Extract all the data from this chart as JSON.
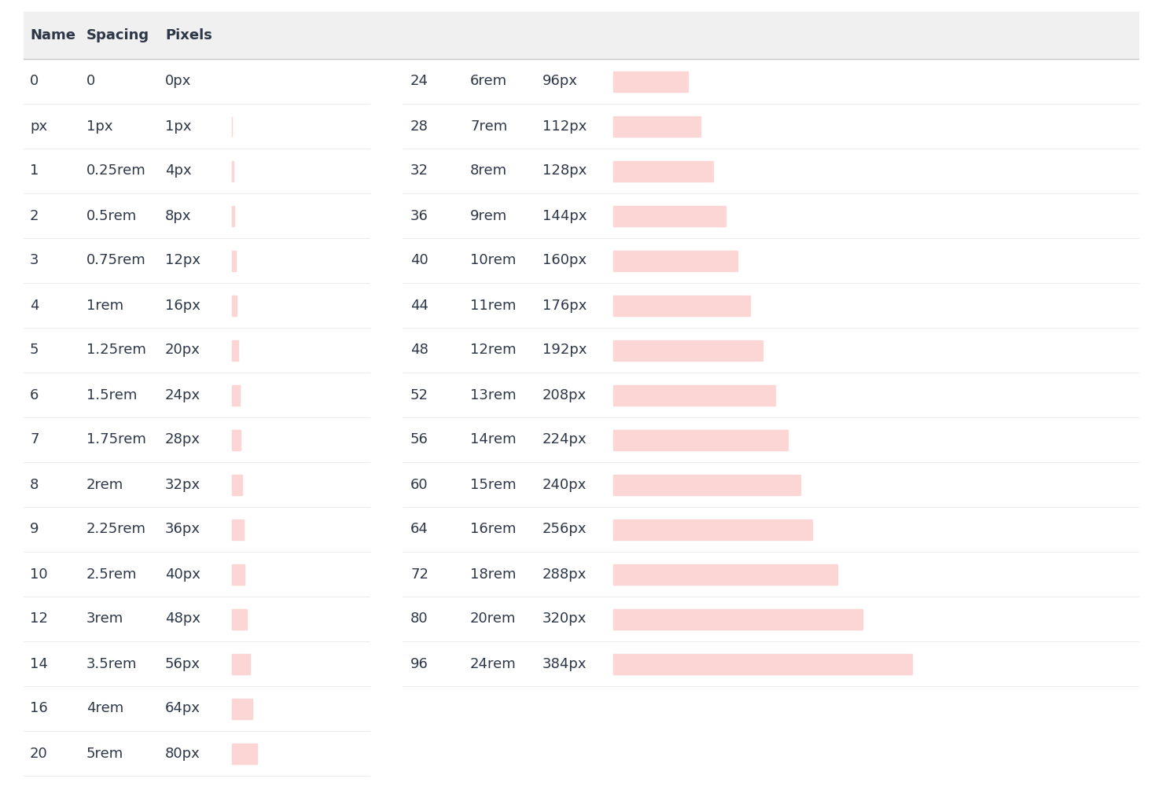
{
  "background_color": "#ffffff",
  "header_bg": "#f0f0f0",
  "header_text_color": "#2d3748",
  "body_text_color": "#2d3748",
  "bar_color": "#fcd5d5",
  "left_rows": [
    [
      "0",
      "0",
      "0px",
      0
    ],
    [
      "px",
      "1px",
      "1px",
      1
    ],
    [
      "1",
      "0.25rem",
      "4px",
      4
    ],
    [
      "2",
      "0.5rem",
      "8px",
      8
    ],
    [
      "3",
      "0.75rem",
      "12px",
      12
    ],
    [
      "4",
      "1rem",
      "16px",
      16
    ],
    [
      "5",
      "1.25rem",
      "20px",
      20
    ],
    [
      "6",
      "1.5rem",
      "24px",
      24
    ],
    [
      "7",
      "1.75rem",
      "28px",
      28
    ],
    [
      "8",
      "2rem",
      "32px",
      32
    ],
    [
      "9",
      "2.25rem",
      "36px",
      36
    ],
    [
      "10",
      "2.5rem",
      "40px",
      40
    ],
    [
      "12",
      "3rem",
      "48px",
      48
    ],
    [
      "14",
      "3.5rem",
      "56px",
      56
    ],
    [
      "16",
      "4rem",
      "64px",
      64
    ],
    [
      "20",
      "5rem",
      "80px",
      80
    ]
  ],
  "right_rows": [
    [
      "24",
      "6rem",
      "96px",
      96
    ],
    [
      "28",
      "7rem",
      "112px",
      112
    ],
    [
      "32",
      "8rem",
      "128px",
      128
    ],
    [
      "36",
      "9rem",
      "144px",
      144
    ],
    [
      "40",
      "10rem",
      "160px",
      160
    ],
    [
      "44",
      "11rem",
      "176px",
      176
    ],
    [
      "48",
      "12rem",
      "192px",
      192
    ],
    [
      "52",
      "13rem",
      "208px",
      208
    ],
    [
      "56",
      "14rem",
      "224px",
      224
    ],
    [
      "60",
      "15rem",
      "240px",
      240
    ],
    [
      "64",
      "16rem",
      "256px",
      256
    ],
    [
      "72",
      "18rem",
      "288px",
      288
    ],
    [
      "80",
      "20rem",
      "320px",
      320
    ],
    [
      "96",
      "24rem",
      "384px",
      384
    ]
  ],
  "header_fontsize": 13,
  "body_fontsize": 13,
  "fig_width": 14.78,
  "fig_height": 10.0
}
